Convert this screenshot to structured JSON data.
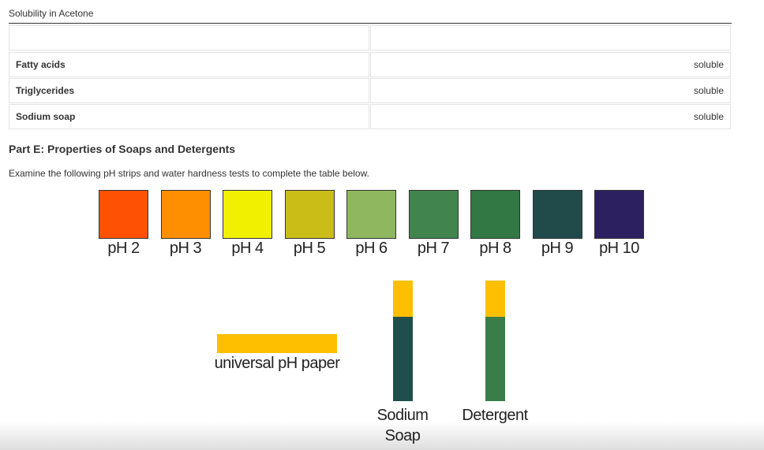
{
  "section_title": "Solubility in Acetone",
  "table": {
    "rows": [
      [
        "Fatty acids",
        "soluble"
      ],
      [
        "Triglycerides",
        "soluble"
      ],
      [
        "Sodium soap",
        "soluble"
      ]
    ]
  },
  "part_title": "Part E: Properties of Soaps and Detergents",
  "instructions": "Examine the following pH strips and water hardness tests to complete the table below.",
  "ph_scale": [
    {
      "label": "pH 2",
      "color": "#fe5104"
    },
    {
      "label": "pH 3",
      "color": "#fd8f00"
    },
    {
      "label": "pH 4",
      "color": "#f0f000"
    },
    {
      "label": "pH 5",
      "color": "#cbbd18"
    },
    {
      "label": "pH 6",
      "color": "#8fb760"
    },
    {
      "label": "pH 7",
      "color": "#42844e"
    },
    {
      "label": "pH 8",
      "color": "#317845"
    },
    {
      "label": "pH 9",
      "color": "#214b4b"
    },
    {
      "label": "pH 10",
      "color": "#2d2060"
    }
  ],
  "paper": {
    "label": "universal pH paper",
    "color": "#fdbf00"
  },
  "strips": [
    {
      "label_lines": [
        "Sodium",
        "Soap"
      ],
      "color": "#1f4e4c"
    },
    {
      "label_lines": [
        "Detergent"
      ],
      "color": "#3a7d4a"
    }
  ]
}
